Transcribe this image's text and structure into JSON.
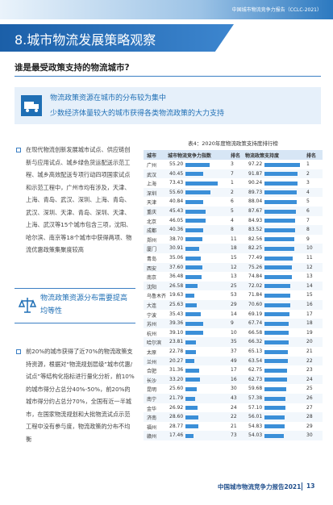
{
  "header": {
    "report": "中国城市物流竞争力报告（CCLC-2021）",
    "title": "8.城市物流发展策略观察",
    "subtitle": "谁是最受政策支持的物流城市?"
  },
  "highlight": {
    "line1": "物流政策资源在城市的分布较为集中",
    "line2": "少数经济体量较大的城市获得各类物流政策的大力支持"
  },
  "paragraph1": "在现代物流创新发展城市试点、供应链创新与应用试点、城乡绿色货运配送示范工程、城乡高效配送专项行动四项国家试点和示范工程中，广州市均有涉及，天津、上海、青岛、武汉、深圳、上海、青岛、武汉、深圳、天津、青岛、深圳、天津、上海、武汉等15个城市包含三项，沈阳、哈尔滨、南京等18个城市中获得两项、物流优惠政策集聚度较高",
  "callout": "物流政策资源分布需要提高均等性",
  "paragraph2": "前20%的城市获得了近70%的物流政策支持资源，根据对“物流规划层级”城市优惠/试点”等结构化指标进行量化分析，前10%的城市得分占总分40%-50%，前20%的城市得分约占总分70%，全国有近一半城市，在国家物流规划和大批物流试点示范工程中没有参与度，物流政策的分布不均衡",
  "table": {
    "caption": "表4：2020年度物流政策支持度排行榜",
    "columns": [
      "城市",
      "城市物流竞争力指数",
      "排名",
      "物流政策支持度",
      "排名"
    ],
    "rows": [
      [
        "广州",
        "55.20",
        3,
        "97.22",
        1
      ],
      [
        "武汉",
        "40.45",
        7,
        "91.87",
        2
      ],
      [
        "上海",
        "73.43",
        1,
        "90.24",
        3
      ],
      [
        "深圳",
        "55.60",
        2,
        "89.73",
        4
      ],
      [
        "天津",
        "40.84",
        6,
        "88.04",
        5
      ],
      [
        "重庆",
        "45.43",
        5,
        "87.67",
        6
      ],
      [
        "北京",
        "46.05",
        4,
        "84.93",
        7
      ],
      [
        "成都",
        "40.36",
        8,
        "83.52",
        8
      ],
      [
        "郑州",
        "38.70",
        11,
        "82.56",
        9
      ],
      [
        "厦门",
        "30.91",
        18,
        "82.25",
        10
      ],
      [
        "青岛",
        "35.06",
        15,
        "77.49",
        11
      ],
      [
        "西安",
        "37.60",
        12,
        "75.26",
        12
      ],
      [
        "南京",
        "36.48",
        13,
        "74.84",
        13
      ],
      [
        "沈阳",
        "26.58",
        25,
        "72.02",
        14
      ],
      [
        "乌鲁木齐",
        "19.63",
        53,
        "71.84",
        15
      ],
      [
        "大连",
        "25.63",
        29,
        "70.60",
        16
      ],
      [
        "宁波",
        "35.43",
        14,
        "69.19",
        17
      ],
      [
        "苏州",
        "39.36",
        9,
        "67.74",
        18
      ],
      [
        "杭州",
        "39.10",
        10,
        "66.58",
        19
      ],
      [
        "哈尔滨",
        "23.81",
        35,
        "66.32",
        20
      ],
      [
        "太原",
        "22.78",
        37,
        "65.13",
        21
      ],
      [
        "兰州",
        "20.27",
        49,
        "63.54",
        22
      ],
      [
        "合肥",
        "31.36",
        17,
        "62.75",
        23
      ],
      [
        "长沙",
        "33.20",
        16,
        "62.73",
        24
      ],
      [
        "昆明",
        "25.60",
        30,
        "59.68",
        25
      ],
      [
        "南宁",
        "21.79",
        43,
        "57.38",
        26
      ],
      [
        "金华",
        "26.92",
        24,
        "57.10",
        27
      ],
      [
        "济南",
        "28.60",
        22,
        "56.01",
        28
      ],
      [
        "福州",
        "28.77",
        21,
        "54.83",
        29
      ],
      [
        "赣州",
        "17.46",
        73,
        "54.03",
        30
      ]
    ]
  },
  "footer": {
    "text": "中国城市物流竞争力报告2021",
    "page": 13
  }
}
